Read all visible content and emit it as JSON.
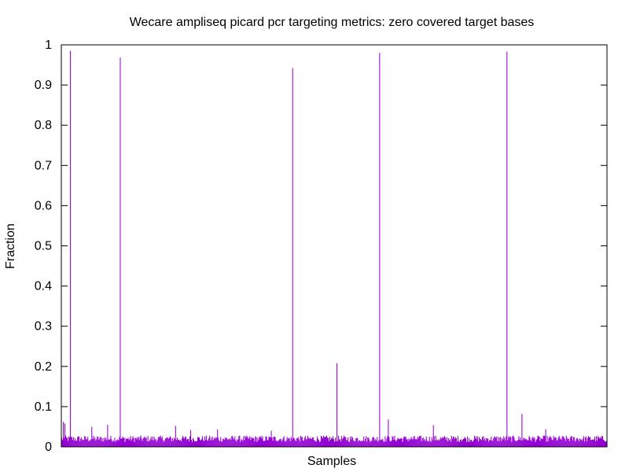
{
  "chart_data": {
    "type": "bar",
    "title": "Wecare ampliseq picard pcr targeting metrics: zero covered target bases",
    "xlabel": "Samples",
    "ylabel": "Fraction",
    "ylim": [
      0,
      1
    ],
    "yticks": [
      "0",
      "0.1",
      "0.2",
      "0.3",
      "0.4",
      "0.5",
      "0.6",
      "0.7",
      "0.8",
      "0.9",
      "1"
    ],
    "grid": false,
    "legend": "none",
    "bar_color": "#9400d3",
    "sample_count": 690,
    "baseline_range": [
      0.012,
      0.028
    ],
    "notable_bars": [
      {
        "sample": 11,
        "value": 0.985
      },
      {
        "sample": 74,
        "value": 0.968
      },
      {
        "sample": 292,
        "value": 0.942
      },
      {
        "sample": 348,
        "value": 0.208
      },
      {
        "sample": 402,
        "value": 0.98
      },
      {
        "sample": 563,
        "value": 0.983
      },
      {
        "sample": 2,
        "value": 0.062
      },
      {
        "sample": 4,
        "value": 0.058
      },
      {
        "sample": 38,
        "value": 0.05
      },
      {
        "sample": 58,
        "value": 0.055
      },
      {
        "sample": 144,
        "value": 0.052
      },
      {
        "sample": 163,
        "value": 0.042
      },
      {
        "sample": 197,
        "value": 0.043
      },
      {
        "sample": 265,
        "value": 0.04
      },
      {
        "sample": 413,
        "value": 0.068
      },
      {
        "sample": 470,
        "value": 0.054
      },
      {
        "sample": 582,
        "value": 0.082
      },
      {
        "sample": 612,
        "value": 0.044
      }
    ]
  }
}
